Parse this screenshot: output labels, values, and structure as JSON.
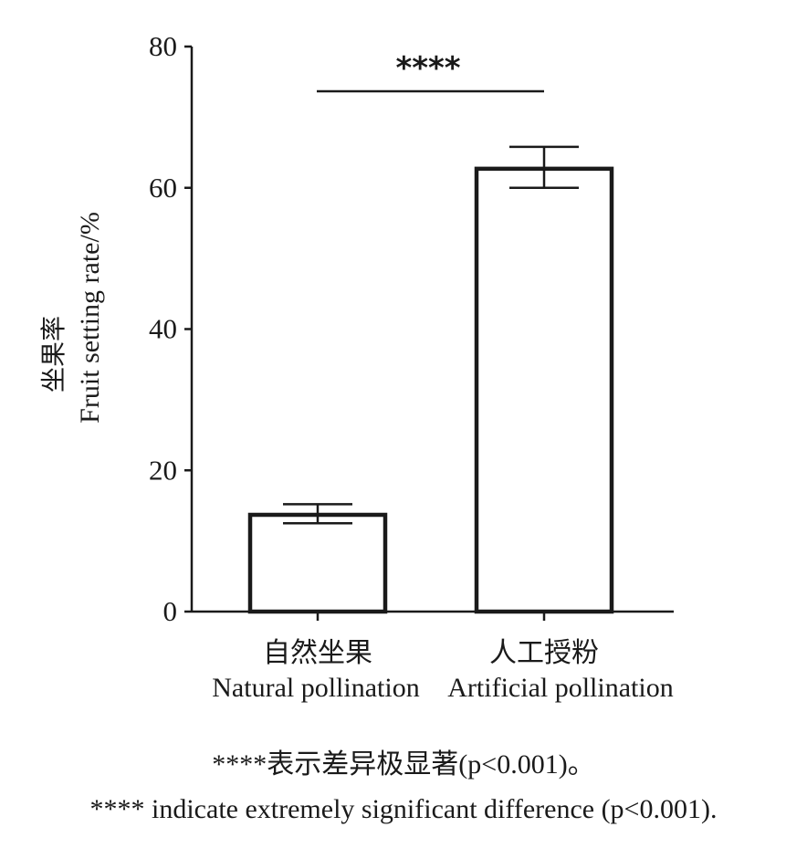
{
  "chart_data": {
    "type": "bar",
    "categories": [
      "自然坐果",
      "人工授粉"
    ],
    "categories_en": [
      "Natural pollination",
      "Artificial pollination"
    ],
    "values": [
      13.7,
      62.7
    ],
    "error_upper": [
      15.2,
      65.8
    ],
    "error_lower": [
      12.5,
      60.0
    ],
    "ylabel_cn": "坐果率",
    "ylabel_en": "Fruit setting rate/%",
    "ylim": [
      0,
      80
    ],
    "yticks": [
      0,
      20,
      40,
      60,
      80
    ],
    "ytick_labels": [
      "0",
      "20",
      "40",
      "60",
      "80"
    ],
    "significance": "****",
    "colors": {
      "bar_fill": "#ffffff",
      "stroke": "#1a1a1a"
    }
  },
  "caption": {
    "cn": "****表示差异极显著(p<0.001)。",
    "en": "**** indicate extremely significant difference (p<0.001)."
  }
}
